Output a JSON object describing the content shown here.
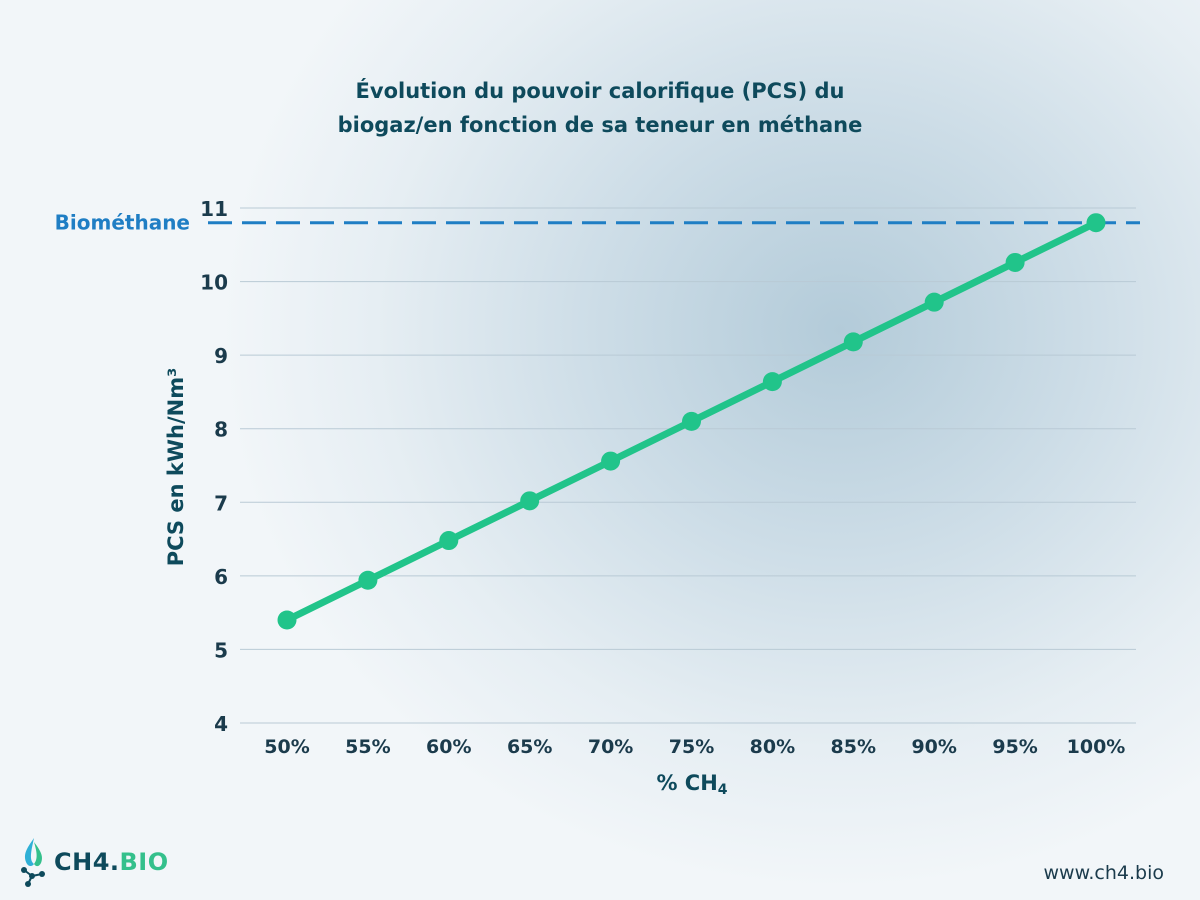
{
  "chart_data": {
    "type": "line",
    "title_line1": "Évolution du pouvoir calorifique (PCS) du",
    "title_line2": "biogaz/en fonction de sa teneur en méthane",
    "categories": [
      "50%",
      "55%",
      "60%",
      "65%",
      "70%",
      "75%",
      "80%",
      "85%",
      "90%",
      "95%",
      "100%"
    ],
    "series": [
      {
        "values": [
          5.4,
          5.94,
          6.48,
          7.02,
          7.56,
          8.1,
          8.64,
          9.18,
          9.72,
          10.26,
          10.8
        ],
        "color": "#21c48a"
      }
    ],
    "xlabel": "% CH",
    "xlabel_subscript": "4",
    "ylabel": "PCS en kWh/Nm³",
    "ylim": [
      4,
      11
    ],
    "yticks": [
      4,
      5,
      6,
      7,
      8,
      9,
      10,
      11
    ],
    "grid": true,
    "reference_line": {
      "label": "Biométhane",
      "value": 10.8,
      "color": "#1f7ec4",
      "style": "dashed"
    }
  },
  "footer": {
    "logo_text_main": "CH4.",
    "logo_text_accent": "BIO",
    "website": "www.ch4.bio"
  }
}
